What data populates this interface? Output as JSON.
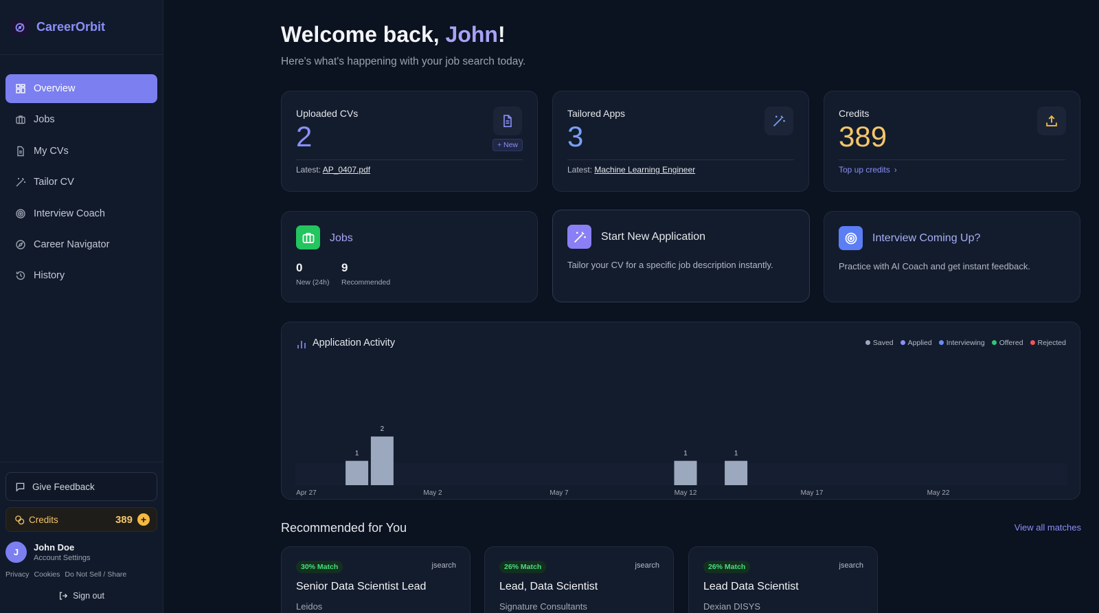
{
  "app": {
    "name": "CareerOrbit"
  },
  "sidebar": {
    "items": [
      {
        "label": "Overview",
        "icon": "grid-icon",
        "active": true
      },
      {
        "label": "Jobs",
        "icon": "briefcase-icon"
      },
      {
        "label": "My CVs",
        "icon": "document-icon"
      },
      {
        "label": "Tailor CV",
        "icon": "wand-icon"
      },
      {
        "label": "Interview Coach",
        "icon": "target-icon"
      },
      {
        "label": "Career Navigator",
        "icon": "compass-icon"
      },
      {
        "label": "History",
        "icon": "history-icon"
      }
    ],
    "feedback_label": "Give Feedback",
    "credits_label": "Credits",
    "credits_value": "389",
    "credits_plus": "+",
    "user": {
      "initial": "J",
      "name": "John Doe",
      "sub": "Account Settings"
    },
    "links": [
      "Privacy",
      "Cookies",
      "Do Not Sell / Share"
    ],
    "signout_label": "Sign out"
  },
  "header": {
    "welcome_prefix": "Welcome back, ",
    "welcome_name": "John",
    "welcome_suffix": "!",
    "subtitle": "Here's what's happening with your job search today."
  },
  "stats": {
    "cvs": {
      "title": "Uploaded CVs",
      "value": "2",
      "latest_prefix": "Latest: ",
      "latest_link": "AP_0407.pdf",
      "new_label": "+ New"
    },
    "apps": {
      "title": "Tailored Apps",
      "value": "3",
      "latest_prefix": "Latest: ",
      "latest_link": "Machine Learning Engineer"
    },
    "credits": {
      "title": "Credits",
      "value": "389",
      "topup": "Top up credits"
    }
  },
  "jobs_card": {
    "title": "Jobs",
    "new_value": "0",
    "new_label": "New (24h)",
    "rec_value": "9",
    "rec_label": "Recommended"
  },
  "start_card": {
    "title": "Start New Application",
    "desc": "Tailor your CV for a specific job description instantly."
  },
  "interview_card": {
    "title": "Interview Coming Up?",
    "desc": "Practice with AI Coach and get instant feedback."
  },
  "chart_data": {
    "type": "bar",
    "title": "Application Activity",
    "legend": [
      {
        "name": "Saved",
        "color": "#9ca8bd"
      },
      {
        "name": "Applied",
        "color": "#8b8ff8"
      },
      {
        "name": "Interviewing",
        "color": "#6b8cf5"
      },
      {
        "name": "Offered",
        "color": "#34c471"
      },
      {
        "name": "Rejected",
        "color": "#ef5555"
      }
    ],
    "tick_labels": [
      "Apr 27",
      "May 2",
      "May 7",
      "May 12",
      "May 17",
      "May 22"
    ],
    "x_start": "Apr 27",
    "x_end": "May 27",
    "points": [
      {
        "date": "Apr 29",
        "value": 1
      },
      {
        "date": "Apr 30",
        "value": 2
      },
      {
        "date": "May 12",
        "value": 1
      },
      {
        "date": "May 14",
        "value": 1
      }
    ],
    "ylim": [
      0,
      5
    ]
  },
  "recommended": {
    "title": "Recommended for You",
    "view_all": "View all matches",
    "jobs": [
      {
        "match": "30% Match",
        "source": "jsearch",
        "title": "Senior Data Scientist Lead",
        "company": "Leidos"
      },
      {
        "match": "26% Match",
        "source": "jsearch",
        "title": "Lead, Data Scientist",
        "company": "Signature Consultants"
      },
      {
        "match": "26% Match",
        "source": "jsearch",
        "title": "Lead Data Scientist",
        "company": "Dexian DISYS"
      }
    ]
  }
}
